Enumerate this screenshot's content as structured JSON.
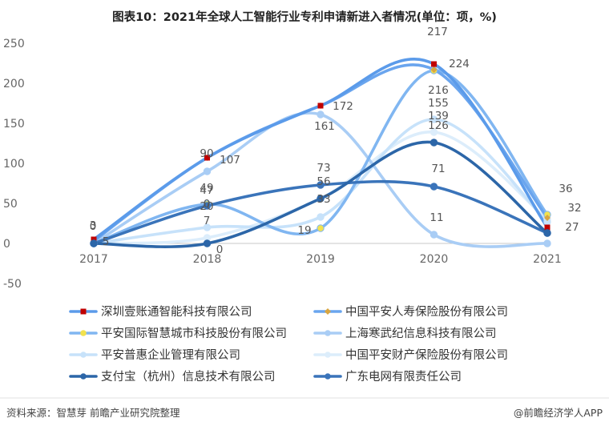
{
  "footer": {
    "source": "资料来源：智慧芽 前瞻产业研究院整理",
    "brand": "@前瞻经济学人APP"
  },
  "chart_data": {
    "type": "line",
    "title": "图表10：2021年全球人工智能行业专利申请新进入者情况(单位：项，%)",
    "x": [
      "2017",
      "2018",
      "2019",
      "2020",
      "2021"
    ],
    "yticks": [
      "250",
      "200",
      "150",
      "100",
      "50",
      "0",
      "-50"
    ],
    "ylim": [
      -50,
      250
    ],
    "grid": false,
    "legend_position": "bottom",
    "series": [
      {
        "name": "深圳壹账通智能科技有限公司",
        "values": [
          5,
          107,
          172,
          224,
          20
        ],
        "color": "#5b9bea",
        "marker": "square",
        "marker_color": "#c00000"
      },
      {
        "name": "中国平安人寿保险股份有限公司",
        "values": [
          3,
          107,
          172,
          217,
          32
        ],
        "color": "#6aa5ee",
        "marker": "diamond",
        "marker_color": "#d9a640"
      },
      {
        "name": "平安国际智慧城市科技股份有限公司",
        "values": [
          0,
          49,
          19,
          216,
          36
        ],
        "color": "#80b6f1",
        "marker": "circle",
        "marker_color": "#f2e24e"
      },
      {
        "name": "上海寒武纪信息科技有限公司",
        "values": [
          0,
          90,
          161,
          11,
          0
        ],
        "color": "#a9cdf5",
        "marker": "circle",
        "marker_color": "#a9cdf5"
      },
      {
        "name": "平安普惠企业管理有限公司",
        "values": [
          0,
          20,
          33,
          155,
          27
        ],
        "color": "#c7e2fa",
        "marker": "circle",
        "marker_color": "#c7e2fa"
      },
      {
        "name": "中国平安财产保险股份有限公司",
        "values": [
          0,
          7,
          56,
          139,
          30
        ],
        "color": "#dcedfb",
        "marker": "circle",
        "marker_color": "#dcedfb"
      },
      {
        "name": "支付宝（杭州）信息技术有限公司",
        "values": [
          0,
          0,
          56,
          126,
          13
        ],
        "color": "#2c66a8",
        "marker": "circle",
        "marker_color": "#2c66a8"
      },
      {
        "name": "广东电网有限责任公司",
        "values": [
          0,
          47,
          73,
          71,
          13
        ],
        "color": "#3a74ba",
        "marker": "circle",
        "marker_color": "#3a74ba"
      }
    ],
    "data_labels": [
      {
        "text": "0"
      },
      {
        "text": "3"
      },
      {
        "text": "5"
      },
      {
        "text": "90"
      },
      {
        "text": "107"
      },
      {
        "text": "49"
      },
      {
        "text": "47"
      },
      {
        "text": "20"
      },
      {
        "text": "7"
      },
      {
        "text": "0"
      },
      {
        "text": "0"
      },
      {
        "text": "172"
      },
      {
        "text": "161"
      },
      {
        "text": "73"
      },
      {
        "text": "56"
      },
      {
        "text": "33"
      },
      {
        "text": "19"
      },
      {
        "text": "217"
      },
      {
        "text": "224"
      },
      {
        "text": "216"
      },
      {
        "text": "155"
      },
      {
        "text": "139"
      },
      {
        "text": "126"
      },
      {
        "text": "71"
      },
      {
        "text": "11"
      },
      {
        "text": "36"
      },
      {
        "text": "32"
      },
      {
        "text": "27"
      }
    ]
  }
}
